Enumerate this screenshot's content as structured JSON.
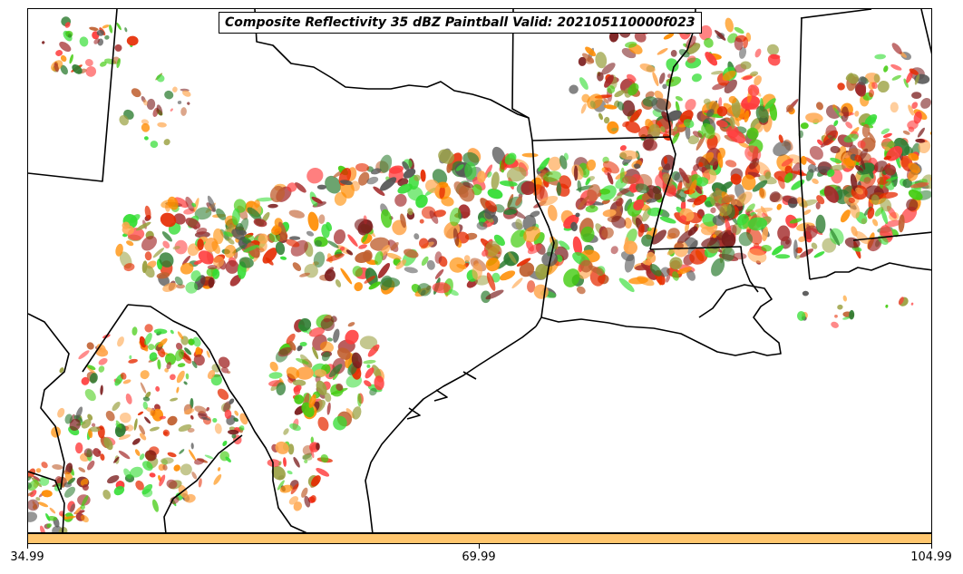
{
  "title": "Composite Reflectivity 35 dBZ Paintball Valid: 202105110000f023",
  "colorbar": {
    "color": "#ffc66e",
    "ticks": [
      "34.99",
      "69.99",
      "104.99"
    ]
  },
  "palette": [
    "#ff3b3b",
    "#e62a00",
    "#ff8c00",
    "#ffa64d",
    "#a32a2a",
    "#2e7d32",
    "#44cc11",
    "#9aa040",
    "#33dd33",
    "#7a1c1c",
    "#555555",
    "#c06030"
  ]
}
